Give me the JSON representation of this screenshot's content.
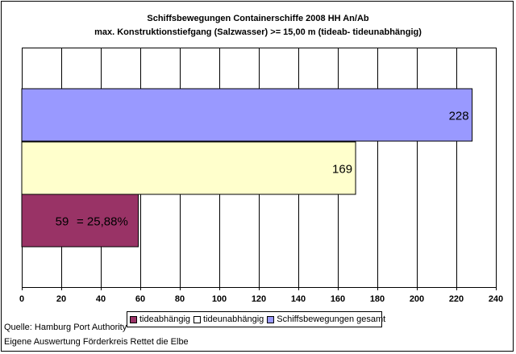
{
  "chart_data": {
    "type": "bar",
    "orientation": "horizontal",
    "title": "Schiffsbewegungen Containerschiffe 2008 HH An/Ab",
    "subtitle": "max. Konstruktionstiefgang (Salzwasser) >= 15,00 m (tideab- tideunabhängig)",
    "series": [
      {
        "name": "Schiffsbewegungen gesamt",
        "value": 228,
        "label": "228",
        "color": "#9999ff"
      },
      {
        "name": "tideunabhängig",
        "value": 169,
        "label": "169",
        "color": "#ffffcc"
      },
      {
        "name": "tideabhängig",
        "value": 59,
        "label": "59",
        "extra_label": "= 25,88%",
        "color": "#993366"
      }
    ],
    "xlim": [
      0,
      240
    ],
    "xticks": [
      "0",
      "20",
      "40",
      "60",
      "80",
      "100",
      "120",
      "140",
      "160",
      "180",
      "200",
      "220",
      "240"
    ],
    "grid": true,
    "legend": {
      "position": "bottom",
      "items": [
        {
          "label": "tideabhängig",
          "color": "#993366"
        },
        {
          "label": "tideunabhängig",
          "color": "#ffffff"
        },
        {
          "label": "Schiffsbewegungen gesamt",
          "color": "#9999ff"
        }
      ]
    }
  },
  "footer": {
    "source": "Quelle: Hamburg Port Authority",
    "note": "Eigene Auswertung Förderkreis Rettet die Elbe"
  }
}
